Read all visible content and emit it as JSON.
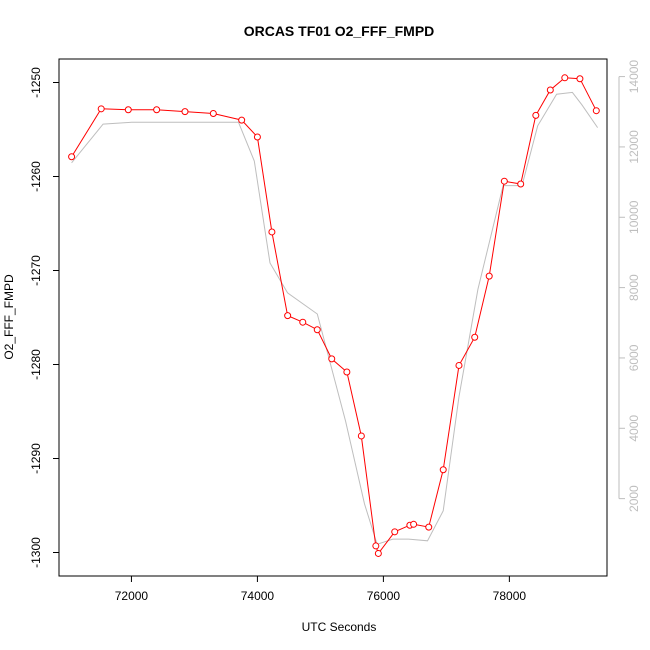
{
  "chart_data": {
    "type": "line",
    "title": "ORCAS TF01 O2_FFF_FMPD",
    "xlabel": "UTC Seconds",
    "ylabel": "O2_FFF_FMPD",
    "xlim": [
      70850,
      79550
    ],
    "ylim": [
      -1302.5,
      -1247.5
    ],
    "y2lim": [
      -200,
      14500
    ],
    "x_ticks": [
      72000,
      74000,
      76000,
      78000
    ],
    "y_ticks": [
      -1250,
      -1260,
      -1270,
      -1280,
      -1290,
      -1300
    ],
    "y2_ticks": [
      2000,
      4000,
      6000,
      8000,
      10000,
      12000,
      14000
    ],
    "grid": false,
    "colors": {
      "primary": "#ff0000",
      "secondary": "#bebebe",
      "axis": "#000000",
      "axis2": "#bebebe"
    },
    "series": [
      {
        "axis": "left",
        "style": "line+points",
        "x": [
          71050,
          71520,
          71950,
          72400,
          72850,
          73300,
          73750,
          74000,
          74230,
          74480,
          74720,
          74950,
          75180,
          75420,
          75650,
          75880,
          75920,
          76180,
          76420,
          76480,
          76720,
          76950,
          77200,
          77450,
          77680,
          77920,
          78180,
          78420,
          78650,
          78880,
          79120,
          79380
        ],
        "values": [
          -1257.9,
          -1252.8,
          -1252.9,
          -1252.9,
          -1253.1,
          -1253.3,
          -1254.0,
          -1255.8,
          -1265.9,
          -1274.8,
          -1275.5,
          -1276.3,
          -1279.4,
          -1280.8,
          -1287.6,
          -1299.3,
          -1300.1,
          -1297.8,
          -1297.1,
          -1297.0,
          -1297.3,
          -1291.2,
          -1280.1,
          -1277.1,
          -1270.6,
          -1260.5,
          -1260.8,
          -1253.5,
          -1250.8,
          -1249.5,
          -1249.6,
          -1253.0
        ]
      },
      {
        "axis": "right",
        "style": "line",
        "x": [
          71050,
          71550,
          72000,
          73000,
          73700,
          73950,
          74200,
          74480,
          74950,
          75400,
          75700,
          75900,
          76150,
          76400,
          76700,
          76950,
          77200,
          77500,
          77900,
          78200,
          78450,
          78750,
          79000,
          79150,
          79400
        ],
        "values": [
          11550,
          12650,
          12700,
          12700,
          12700,
          11600,
          8700,
          7850,
          7250,
          4200,
          1850,
          700,
          850,
          850,
          800,
          1650,
          4900,
          7950,
          10900,
          10900,
          12600,
          13500,
          13550,
          13200,
          12550
        ]
      }
    ]
  }
}
